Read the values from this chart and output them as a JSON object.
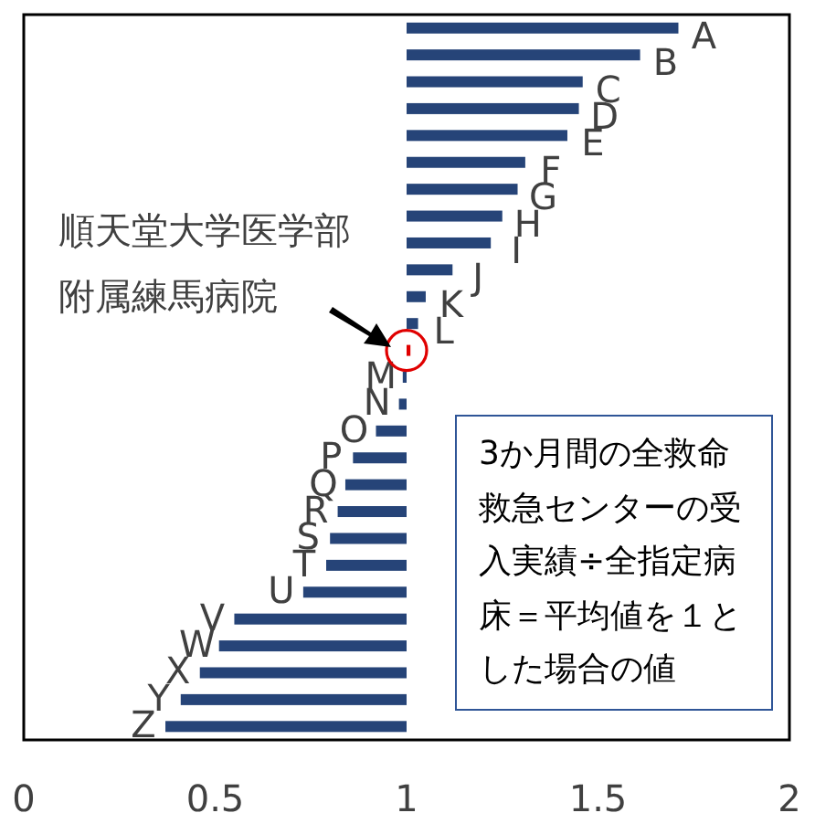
{
  "chart_data": {
    "type": "bar",
    "orientation": "horizontal",
    "categories": [
      "A",
      "B",
      "C",
      "D",
      "E",
      "F",
      "G",
      "H",
      "I",
      "J",
      "K",
      "L",
      null,
      "M",
      "N",
      "O",
      "P",
      "Q",
      "R",
      "S",
      "T",
      "U",
      "V",
      "W",
      "X",
      "Y",
      "Z"
    ],
    "base": [
      1,
      1,
      1,
      1,
      1,
      1,
      1,
      1,
      1,
      1,
      1,
      1,
      1,
      1,
      1,
      1,
      1,
      1,
      1,
      1,
      1,
      1,
      1,
      1,
      1,
      1,
      1
    ],
    "values": [
      0.71,
      0.61,
      0.46,
      0.45,
      0.42,
      0.31,
      0.29,
      0.25,
      0.22,
      0.12,
      0.05,
      0.03,
      0.01,
      -0.01,
      -0.02,
      -0.08,
      -0.14,
      -0.16,
      -0.18,
      -0.2,
      -0.21,
      -0.27,
      -0.45,
      -0.49,
      -0.54,
      -0.59,
      -0.63
    ],
    "colors": [
      "#264478",
      "#264478",
      "#264478",
      "#264478",
      "#264478",
      "#264478",
      "#264478",
      "#264478",
      "#264478",
      "#264478",
      "#264478",
      "#264478",
      "#e00000",
      "#264478",
      "#264478",
      "#264478",
      "#264478",
      "#264478",
      "#264478",
      "#264478",
      "#264478",
      "#264478",
      "#264478",
      "#264478",
      "#264478",
      "#264478",
      "#264478"
    ],
    "xlim": [
      0,
      2
    ],
    "xticks": [
      0,
      0.5,
      1,
      1.5,
      2
    ],
    "tick_labels": "x",
    "grid": false,
    "annotations": [
      "順天堂大学医学部附属練馬病院",
      "3か月間の全救命救急センターの受入実績÷全指定病床＝平均値を１とした場合の値"
    ]
  }
}
